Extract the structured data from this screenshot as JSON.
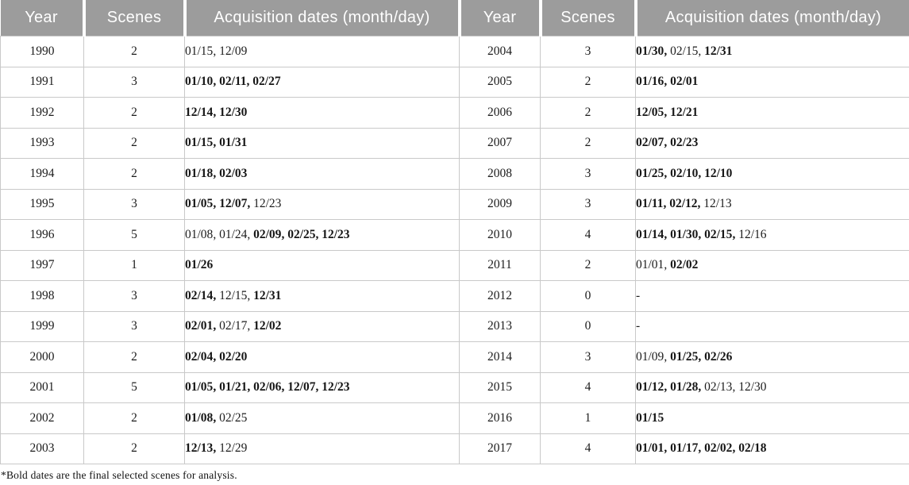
{
  "table": {
    "headers": [
      "Year",
      "Scenes",
      "Acquisition dates (month/day)",
      "Year",
      "Scenes",
      "Acquisition dates (month/day)"
    ],
    "rows": [
      {
        "left": {
          "year": "1990",
          "scenes": "2",
          "dates": [
            {
              "text": "01/15",
              "bold": false
            },
            {
              "text": "12/09",
              "bold": false
            }
          ]
        },
        "right": {
          "year": "2004",
          "scenes": "3",
          "dates": [
            {
              "text": "01/30",
              "bold": true
            },
            {
              "text": "02/15",
              "bold": false
            },
            {
              "text": "12/31",
              "bold": true
            }
          ]
        }
      },
      {
        "left": {
          "year": "1991",
          "scenes": "3",
          "dates": [
            {
              "text": "01/10",
              "bold": true
            },
            {
              "text": "02/11",
              "bold": true
            },
            {
              "text": "02/27",
              "bold": true
            }
          ]
        },
        "right": {
          "year": "2005",
          "scenes": "2",
          "dates": [
            {
              "text": "01/16",
              "bold": true
            },
            {
              "text": "02/01",
              "bold": true
            }
          ]
        }
      },
      {
        "left": {
          "year": "1992",
          "scenes": "2",
          "dates": [
            {
              "text": "12/14",
              "bold": true
            },
            {
              "text": "12/30",
              "bold": true
            }
          ]
        },
        "right": {
          "year": "2006",
          "scenes": "2",
          "dates": [
            {
              "text": "12/05",
              "bold": true
            },
            {
              "text": "12/21",
              "bold": true
            }
          ]
        }
      },
      {
        "left": {
          "year": "1993",
          "scenes": "2",
          "dates": [
            {
              "text": "01/15",
              "bold": true
            },
            {
              "text": "01/31",
              "bold": true
            }
          ]
        },
        "right": {
          "year": "2007",
          "scenes": "2",
          "dates": [
            {
              "text": "02/07",
              "bold": true
            },
            {
              "text": "02/23",
              "bold": true
            }
          ]
        }
      },
      {
        "left": {
          "year": "1994",
          "scenes": "2",
          "dates": [
            {
              "text": "01/18",
              "bold": true
            },
            {
              "text": "02/03",
              "bold": true
            }
          ]
        },
        "right": {
          "year": "2008",
          "scenes": "3",
          "dates": [
            {
              "text": "01/25",
              "bold": true
            },
            {
              "text": "02/10",
              "bold": true
            },
            {
              "text": "12/10",
              "bold": true
            }
          ]
        }
      },
      {
        "left": {
          "year": "1995",
          "scenes": "3",
          "dates": [
            {
              "text": "01/05",
              "bold": true
            },
            {
              "text": "12/07",
              "bold": true
            },
            {
              "text": "12/23",
              "bold": false
            }
          ]
        },
        "right": {
          "year": "2009",
          "scenes": "3",
          "dates": [
            {
              "text": "01/11",
              "bold": true
            },
            {
              "text": "02/12",
              "bold": true
            },
            {
              "text": "12/13",
              "bold": false
            }
          ]
        }
      },
      {
        "left": {
          "year": "1996",
          "scenes": "5",
          "dates": [
            {
              "text": "01/08",
              "bold": false
            },
            {
              "text": "01/24",
              "bold": false
            },
            {
              "text": "02/09",
              "bold": true
            },
            {
              "text": "02/25",
              "bold": true
            },
            {
              "text": "12/23",
              "bold": true
            }
          ]
        },
        "right": {
          "year": "2010",
          "scenes": "4",
          "dates": [
            {
              "text": "01/14",
              "bold": true
            },
            {
              "text": "01/30",
              "bold": true
            },
            {
              "text": "02/15",
              "bold": true
            },
            {
              "text": "12/16",
              "bold": false
            }
          ]
        }
      },
      {
        "left": {
          "year": "1997",
          "scenes": "1",
          "dates": [
            {
              "text": "01/26",
              "bold": true
            }
          ]
        },
        "right": {
          "year": "2011",
          "scenes": "2",
          "dates": [
            {
              "text": "01/01",
              "bold": false
            },
            {
              "text": "02/02",
              "bold": true
            }
          ]
        }
      },
      {
        "left": {
          "year": "1998",
          "scenes": "3",
          "dates": [
            {
              "text": "02/14",
              "bold": true
            },
            {
              "text": "12/15",
              "bold": false
            },
            {
              "text": "12/31",
              "bold": true
            }
          ]
        },
        "right": {
          "year": "2012",
          "scenes": "0",
          "dates": [
            {
              "text": "-",
              "bold": false
            }
          ]
        }
      },
      {
        "left": {
          "year": "1999",
          "scenes": "3",
          "dates": [
            {
              "text": "02/01",
              "bold": true
            },
            {
              "text": "02/17",
              "bold": false
            },
            {
              "text": "12/02",
              "bold": true
            }
          ]
        },
        "right": {
          "year": "2013",
          "scenes": "0",
          "dates": [
            {
              "text": "-",
              "bold": false
            }
          ]
        }
      },
      {
        "left": {
          "year": "2000",
          "scenes": "2",
          "dates": [
            {
              "text": "02/04",
              "bold": true
            },
            {
              "text": "02/20",
              "bold": true
            }
          ]
        },
        "right": {
          "year": "2014",
          "scenes": "3",
          "dates": [
            {
              "text": "01/09",
              "bold": false
            },
            {
              "text": "01/25",
              "bold": true
            },
            {
              "text": "02/26",
              "bold": true
            }
          ]
        }
      },
      {
        "left": {
          "year": "2001",
          "scenes": "5",
          "dates": [
            {
              "text": "01/05",
              "bold": true
            },
            {
              "text": "01/21",
              "bold": true
            },
            {
              "text": "02/06",
              "bold": true
            },
            {
              "text": "12/07",
              "bold": true
            },
            {
              "text": "12/23",
              "bold": true
            }
          ]
        },
        "right": {
          "year": "2015",
          "scenes": "4",
          "dates": [
            {
              "text": "01/12",
              "bold": true
            },
            {
              "text": "01/28",
              "bold": true
            },
            {
              "text": "02/13",
              "bold": false
            },
            {
              "text": "12/30",
              "bold": false
            }
          ]
        }
      },
      {
        "left": {
          "year": "2002",
          "scenes": "2",
          "dates": [
            {
              "text": "01/08",
              "bold": true
            },
            {
              "text": "02/25",
              "bold": false
            }
          ]
        },
        "right": {
          "year": "2016",
          "scenes": "1",
          "dates": [
            {
              "text": "01/15",
              "bold": true
            }
          ]
        }
      },
      {
        "left": {
          "year": "2003",
          "scenes": "2",
          "dates": [
            {
              "text": "12/13",
              "bold": true
            },
            {
              "text": "12/29",
              "bold": false
            }
          ]
        },
        "right": {
          "year": "2017",
          "scenes": "4",
          "dates": [
            {
              "text": "01/01",
              "bold": true
            },
            {
              "text": "01/17",
              "bold": true
            },
            {
              "text": "02/02",
              "bold": true
            },
            {
              "text": "02/18",
              "bold": true
            }
          ]
        }
      }
    ]
  },
  "footnote": "*Bold dates are the final selected scenes for analysis.",
  "colors": {
    "header_background": "#9c9c9c",
    "header_text": "#ffffff",
    "body_text": "#1c1c1c",
    "grid_border": "#c9c9c9"
  }
}
